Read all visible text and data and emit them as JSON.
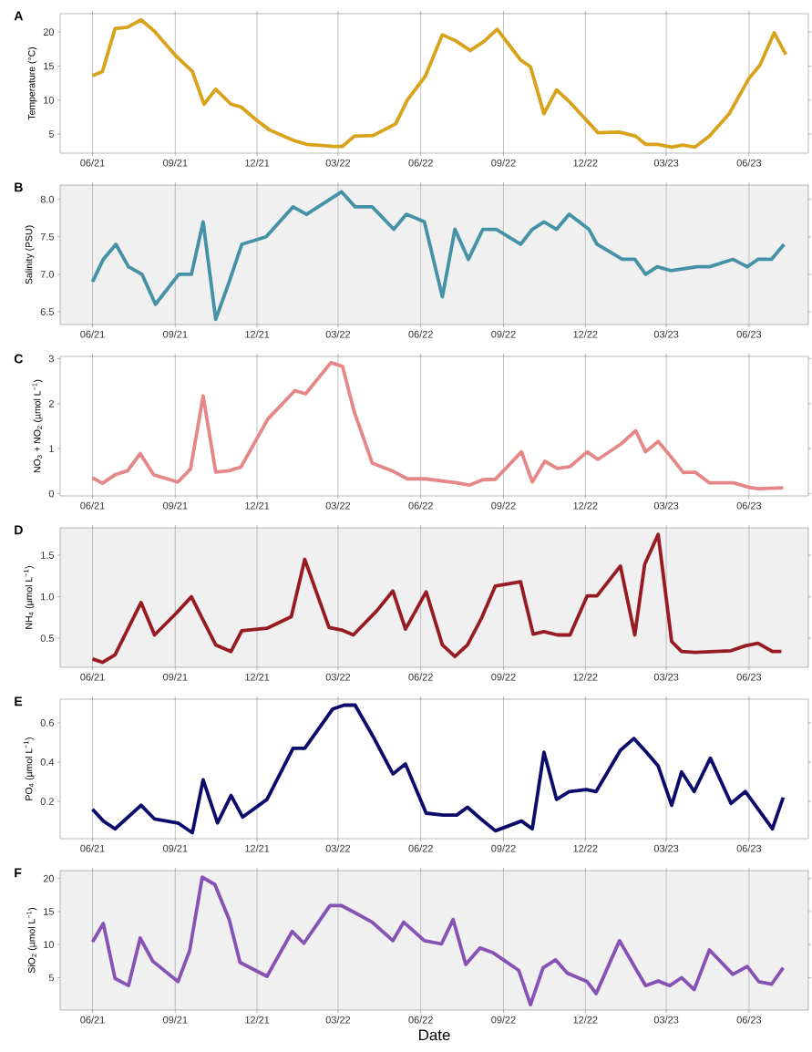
{
  "chart_data": [
    {
      "type": "line",
      "title": "A",
      "ylabel": "Temperature (°C)",
      "color": "#d9a21b",
      "grid": "x",
      "xlim": [
        "2021-04-26",
        "2023-08-06"
      ],
      "ylim": [
        2.2,
        22.7
      ],
      "xticks": [
        {
          "value": "2021-06-01",
          "label": "06/21"
        },
        {
          "value": "2021-09-01",
          "label": "09/21"
        },
        {
          "value": "2021-12-01",
          "label": "12/21"
        },
        {
          "value": "2022-03-01",
          "label": "03/22"
        },
        {
          "value": "2022-06-01",
          "label": "06/22"
        },
        {
          "value": "2022-09-01",
          "label": "09/22"
        },
        {
          "value": "2022-12-01",
          "label": "12/22"
        },
        {
          "value": "2023-03-01",
          "label": "03/23"
        },
        {
          "value": "2023-06-01",
          "label": "06/23"
        }
      ],
      "yticks": [
        5,
        10,
        15,
        20
      ],
      "x": [
        "2021-06-01",
        "2021-06-12",
        "2021-06-26",
        "2021-07-10",
        "2021-07-25",
        "2021-08-09",
        "2021-09-01",
        "2021-09-20",
        "2021-10-03",
        "2021-10-16",
        "2021-11-02",
        "2021-11-13",
        "2021-12-01",
        "2021-12-15",
        "2022-01-10",
        "2022-01-25",
        "2022-02-15",
        "2022-02-23",
        "2022-03-06",
        "2022-03-19",
        "2022-04-09",
        "2022-05-04",
        "2022-05-17",
        "2022-06-06",
        "2022-06-25",
        "2022-07-10",
        "2022-07-26",
        "2022-08-10",
        "2022-08-25",
        "2022-09-20",
        "2022-10-01",
        "2022-10-16",
        "2022-10-30",
        "2022-11-13",
        "2022-12-15",
        "2023-01-08",
        "2023-01-26",
        "2023-02-06",
        "2023-02-19",
        "2023-03-07",
        "2023-03-19",
        "2023-04-02",
        "2023-04-18",
        "2023-05-10",
        "2023-06-01",
        "2023-06-13",
        "2023-06-29",
        "2023-07-12"
      ],
      "values": [
        13.6,
        14.2,
        20.5,
        20.7,
        21.8,
        20.1,
        16.6,
        14.2,
        9.4,
        11.6,
        9.4,
        9.0,
        7.0,
        5.6,
        4.1,
        3.5,
        3.3,
        3.2,
        3.2,
        4.7,
        4.8,
        6.5,
        10.0,
        13.5,
        19.6,
        18.7,
        17.3,
        18.6,
        20.4,
        15.9,
        14.9,
        8.0,
        11.5,
        9.8,
        5.2,
        5.3,
        4.7,
        3.5,
        3.5,
        3.1,
        3.4,
        3.1,
        4.7,
        8.0,
        13.2,
        15.1,
        19.9,
        16.7
      ]
    },
    {
      "type": "line",
      "title": "B",
      "ylabel": "Salinity (PSU)",
      "color": "#4592a6",
      "grid": "x",
      "xlim": [
        "2021-04-26",
        "2023-08-06"
      ],
      "ylim": [
        6.33,
        8.19
      ],
      "xticks": [
        {
          "value": "2021-06-01",
          "label": "06/21"
        },
        {
          "value": "2021-09-01",
          "label": "09/21"
        },
        {
          "value": "2021-12-01",
          "label": "12/21"
        },
        {
          "value": "2022-03-01",
          "label": "03/22"
        },
        {
          "value": "2022-06-01",
          "label": "06/22"
        },
        {
          "value": "2022-09-01",
          "label": "09/22"
        },
        {
          "value": "2022-12-01",
          "label": "12/22"
        },
        {
          "value": "2023-03-01",
          "label": "03/23"
        },
        {
          "value": "2023-06-01",
          "label": "06/23"
        }
      ],
      "yticks": [
        6.5,
        {
          "value": 7.0,
          "label": "7.0"
        },
        7.5,
        {
          "value": 8.0,
          "label": "8.0"
        }
      ],
      "x": [
        "2021-06-01",
        "2021-06-13",
        "2021-06-27",
        "2021-07-11",
        "2021-07-26",
        "2021-08-10",
        "2021-09-05",
        "2021-09-19",
        "2021-10-02",
        "2021-10-16",
        "2021-10-31",
        "2021-11-14",
        "2021-12-11",
        "2022-01-10",
        "2022-01-25",
        "2022-03-05",
        "2022-03-20",
        "2022-04-08",
        "2022-05-02",
        "2022-05-16",
        "2022-06-05",
        "2022-06-25",
        "2022-07-09",
        "2022-07-24",
        "2022-08-09",
        "2022-08-24",
        "2022-09-20",
        "2022-10-03",
        "2022-10-16",
        "2022-10-30",
        "2022-11-13",
        "2022-12-05",
        "2022-12-14",
        "2023-01-11",
        "2023-01-25",
        "2023-02-06",
        "2023-02-19",
        "2023-03-06",
        "2023-04-04",
        "2023-04-18",
        "2023-05-14",
        "2023-05-30",
        "2023-06-11",
        "2023-06-26",
        "2023-07-10"
      ],
      "values": [
        6.9,
        7.2,
        7.4,
        7.1,
        7.0,
        6.6,
        7.0,
        7.0,
        7.7,
        6.4,
        6.9,
        7.4,
        7.5,
        7.9,
        7.8,
        8.1,
        7.9,
        7.9,
        7.6,
        7.8,
        7.7,
        6.7,
        7.6,
        7.2,
        7.6,
        7.6,
        7.4,
        7.6,
        7.7,
        7.6,
        7.8,
        7.6,
        7.4,
        7.2,
        7.2,
        7.0,
        7.1,
        7.05,
        7.1,
        7.1,
        7.2,
        7.1,
        7.2,
        7.2,
        7.4
      ]
    },
    {
      "type": "line",
      "title": "C",
      "ylabel": "NO$_{3}$ + NO$_{2}$ (µmol L$^{−1}$)",
      "color": "#e68787",
      "grid": "x",
      "xlim": [
        "2021-04-26",
        "2023-08-06"
      ],
      "ylim": [
        -0.05,
        3.05
      ],
      "xticks": [
        {
          "value": "2021-06-01",
          "label": "06/21"
        },
        {
          "value": "2021-09-01",
          "label": "09/21"
        },
        {
          "value": "2021-12-01",
          "label": "12/21"
        },
        {
          "value": "2022-03-01",
          "label": "03/22"
        },
        {
          "value": "2022-06-01",
          "label": "06/22"
        },
        {
          "value": "2022-09-01",
          "label": "09/22"
        },
        {
          "value": "2022-12-01",
          "label": "12/22"
        },
        {
          "value": "2023-03-01",
          "label": "03/23"
        },
        {
          "value": "2023-06-01",
          "label": "06/23"
        }
      ],
      "yticks": [
        0,
        1,
        2,
        3
      ],
      "x": [
        "2021-06-01",
        "2021-06-12",
        "2021-06-26",
        "2021-07-10",
        "2021-07-24",
        "2021-08-08",
        "2021-09-04",
        "2021-09-18",
        "2021-10-02",
        "2021-10-16",
        "2021-10-31",
        "2021-11-13",
        "2021-12-13",
        "2022-01-12",
        "2022-01-24",
        "2022-02-21",
        "2022-03-06",
        "2022-03-19",
        "2022-04-08",
        "2022-05-02",
        "2022-05-17",
        "2022-06-06",
        "2022-07-11",
        "2022-07-25",
        "2022-08-09",
        "2022-08-23",
        "2022-09-21",
        "2022-10-03",
        "2022-10-17",
        "2022-10-31",
        "2022-11-14",
        "2022-12-03",
        "2022-12-15",
        "2023-01-10",
        "2023-01-26",
        "2023-02-06",
        "2023-02-20",
        "2023-03-07",
        "2023-03-20",
        "2023-04-02",
        "2023-04-18",
        "2023-05-15",
        "2023-06-01",
        "2023-06-12",
        "2023-07-09"
      ],
      "values": [
        0.35,
        0.23,
        0.42,
        0.51,
        0.89,
        0.42,
        0.26,
        0.55,
        2.17,
        0.48,
        0.51,
        0.59,
        1.66,
        2.29,
        2.22,
        2.91,
        2.83,
        1.82,
        0.68,
        0.49,
        0.33,
        0.33,
        0.24,
        0.19,
        0.31,
        0.32,
        0.93,
        0.26,
        0.72,
        0.56,
        0.6,
        0.93,
        0.76,
        1.11,
        1.4,
        0.93,
        1.16,
        0.8,
        0.47,
        0.48,
        0.24,
        0.24,
        0.14,
        0.11,
        0.13
      ]
    },
    {
      "type": "line",
      "title": "D",
      "ylabel": "NH$_{4}$ (µmol L$^{−1}$)",
      "color": "#961b22",
      "grid": "x",
      "xlim": [
        "2021-04-26",
        "2023-08-06"
      ],
      "ylim": [
        0.15,
        1.83
      ],
      "xticks": [
        {
          "value": "2021-06-01",
          "label": "06/21"
        },
        {
          "value": "2021-09-01",
          "label": "09/21"
        },
        {
          "value": "2021-12-01",
          "label": "12/21"
        },
        {
          "value": "2022-03-01",
          "label": "03/22"
        },
        {
          "value": "2022-06-01",
          "label": "06/22"
        },
        {
          "value": "2022-09-01",
          "label": "09/22"
        },
        {
          "value": "2022-12-01",
          "label": "12/22"
        },
        {
          "value": "2023-03-01",
          "label": "03/23"
        },
        {
          "value": "2023-06-01",
          "label": "06/23"
        }
      ],
      "yticks": [
        0.5,
        {
          "value": 1.0,
          "label": "1.0"
        },
        1.5
      ],
      "x": [
        "2021-06-01",
        "2021-06-12",
        "2021-06-26",
        "2021-07-25",
        "2021-08-09",
        "2021-09-01",
        "2021-09-19",
        "2021-10-01",
        "2021-10-16",
        "2021-11-02",
        "2021-11-14",
        "2021-12-12",
        "2022-01-08",
        "2022-01-23",
        "2022-02-19",
        "2022-03-05",
        "2022-03-18",
        "2022-04-13",
        "2022-05-01",
        "2022-05-15",
        "2022-06-07",
        "2022-06-25",
        "2022-07-09",
        "2022-07-23",
        "2022-08-07",
        "2022-08-23",
        "2022-09-20",
        "2022-10-04",
        "2022-10-16",
        "2022-10-31",
        "2022-11-14",
        "2022-12-03",
        "2022-12-14",
        "2023-01-09",
        "2023-01-25",
        "2023-02-05",
        "2023-02-20",
        "2023-03-07",
        "2023-03-18",
        "2023-04-02",
        "2023-05-12",
        "2023-05-28",
        "2023-06-11",
        "2023-06-27",
        "2023-07-07"
      ],
      "values": [
        0.25,
        0.21,
        0.3,
        0.93,
        0.54,
        0.79,
        1.0,
        0.74,
        0.42,
        0.34,
        0.59,
        0.62,
        0.76,
        1.45,
        0.63,
        0.6,
        0.54,
        0.83,
        1.07,
        0.61,
        1.06,
        0.42,
        0.28,
        0.42,
        0.73,
        1.13,
        1.18,
        0.55,
        0.58,
        0.54,
        0.54,
        1.01,
        1.01,
        1.37,
        0.54,
        1.39,
        1.75,
        0.46,
        0.34,
        0.33,
        0.35,
        0.41,
        0.44,
        0.34,
        0.34
      ]
    },
    {
      "type": "line",
      "title": "E",
      "ylabel": "PO$_{4}$ (µmol L$^{−1}$)",
      "color": "#0b0b6b",
      "grid": "x",
      "xlim": [
        "2021-04-26",
        "2023-08-06"
      ],
      "ylim": [
        0.01,
        0.72
      ],
      "xticks": [
        {
          "value": "2021-06-01",
          "label": "06/21"
        },
        {
          "value": "2021-09-01",
          "label": "09/21"
        },
        {
          "value": "2021-12-01",
          "label": "12/21"
        },
        {
          "value": "2022-03-01",
          "label": "03/22"
        },
        {
          "value": "2022-06-01",
          "label": "06/22"
        },
        {
          "value": "2022-09-01",
          "label": "09/22"
        },
        {
          "value": "2022-12-01",
          "label": "12/22"
        },
        {
          "value": "2023-03-01",
          "label": "03/23"
        },
        {
          "value": "2023-06-01",
          "label": "06/23"
        }
      ],
      "yticks": [
        0.2,
        0.4,
        0.6
      ],
      "x": [
        "2021-06-01",
        "2021-06-13",
        "2021-06-26",
        "2021-07-25",
        "2021-08-09",
        "2021-09-04",
        "2021-09-20",
        "2021-10-02",
        "2021-10-18",
        "2021-11-02",
        "2021-11-15",
        "2021-12-12",
        "2022-01-10",
        "2022-01-23",
        "2022-02-23",
        "2022-03-08",
        "2022-03-20",
        "2022-04-09",
        "2022-05-01",
        "2022-05-15",
        "2022-06-07",
        "2022-06-26",
        "2022-07-11",
        "2022-07-23",
        "2022-08-07",
        "2022-08-23",
        "2022-09-21",
        "2022-10-03",
        "2022-10-16",
        "2022-10-30",
        "2022-11-13",
        "2022-12-02",
        "2022-12-13",
        "2023-01-09",
        "2023-01-24",
        "2023-02-07",
        "2023-02-20",
        "2023-03-07",
        "2023-03-18",
        "2023-04-01",
        "2023-04-19",
        "2023-05-12",
        "2023-05-28",
        "2023-06-27",
        "2023-07-09"
      ],
      "values": [
        0.16,
        0.1,
        0.06,
        0.18,
        0.11,
        0.09,
        0.04,
        0.31,
        0.09,
        0.23,
        0.12,
        0.21,
        0.47,
        0.47,
        0.67,
        0.69,
        0.69,
        0.53,
        0.34,
        0.39,
        0.14,
        0.13,
        0.13,
        0.17,
        0.11,
        0.05,
        0.1,
        0.06,
        0.45,
        0.21,
        0.25,
        0.26,
        0.25,
        0.46,
        0.52,
        0.45,
        0.38,
        0.18,
        0.35,
        0.25,
        0.42,
        0.19,
        0.25,
        0.06,
        0.22
      ]
    },
    {
      "type": "line",
      "title": "F",
      "ylabel": "SiO$_{2}$ (µmol L$^{−1}$)",
      "xlabel": "Date",
      "color": "#8653b5",
      "grid": "x",
      "xlim": [
        "2021-04-26",
        "2023-08-06"
      ],
      "ylim": [
        0.1,
        21.2
      ],
      "xticks": [
        {
          "value": "2021-06-01",
          "label": "06/21"
        },
        {
          "value": "2021-09-01",
          "label": "09/21"
        },
        {
          "value": "2021-12-01",
          "label": "12/21"
        },
        {
          "value": "2022-03-01",
          "label": "03/22"
        },
        {
          "value": "2022-06-01",
          "label": "06/22"
        },
        {
          "value": "2022-09-01",
          "label": "09/22"
        },
        {
          "value": "2022-12-01",
          "label": "12/22"
        },
        {
          "value": "2023-03-01",
          "label": "03/23"
        },
        {
          "value": "2023-06-01",
          "label": "06/23"
        }
      ],
      "yticks": [
        5,
        10,
        15,
        20
      ],
      "x": [
        "2021-06-01",
        "2021-06-13",
        "2021-06-26",
        "2021-07-11",
        "2021-07-24",
        "2021-08-07",
        "2021-09-04",
        "2021-09-17",
        "2021-10-01",
        "2021-10-15",
        "2021-10-31",
        "2021-11-12",
        "2021-12-12",
        "2022-01-09",
        "2022-01-22",
        "2022-02-20",
        "2022-03-05",
        "2022-03-19",
        "2022-04-08",
        "2022-05-01",
        "2022-05-13",
        "2022-06-05",
        "2022-06-24",
        "2022-07-07",
        "2022-07-21",
        "2022-08-06",
        "2022-08-20",
        "2022-09-18",
        "2022-10-01",
        "2022-10-15",
        "2022-10-29",
        "2022-11-11",
        "2022-12-03",
        "2022-12-13",
        "2023-01-08",
        "2023-01-22",
        "2023-02-06",
        "2023-02-20",
        "2023-03-05",
        "2023-03-18",
        "2023-04-01",
        "2023-04-18",
        "2023-05-14",
        "2023-05-30",
        "2023-06-12",
        "2023-06-26",
        "2023-07-09"
      ],
      "values": [
        10.4,
        13.2,
        4.9,
        3.8,
        11.0,
        7.5,
        4.4,
        9.1,
        20.2,
        19.1,
        13.8,
        7.3,
        5.2,
        12.0,
        10.2,
        15.9,
        15.9,
        14.9,
        13.4,
        10.6,
        13.4,
        10.6,
        10.1,
        13.8,
        7.0,
        9.5,
        8.8,
        6.1,
        0.9,
        6.5,
        7.7,
        5.7,
        4.4,
        2.6,
        10.6,
        7.3,
        3.8,
        4.5,
        3.8,
        5.0,
        3.2,
        9.2,
        5.5,
        6.7,
        4.4,
        4.0,
        6.5
      ]
    }
  ]
}
